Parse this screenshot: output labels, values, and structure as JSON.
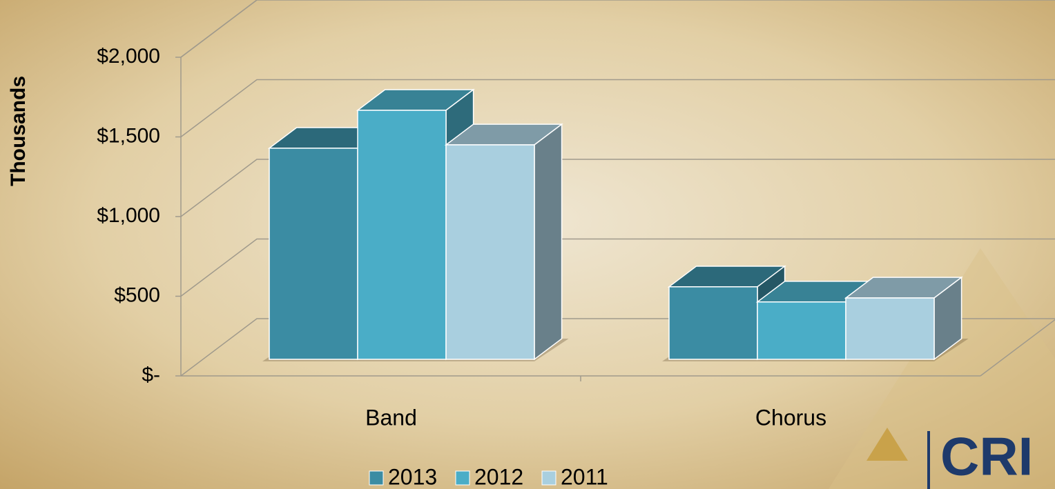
{
  "chart_data": {
    "type": "bar3d",
    "y_label": "Thousands",
    "categories": [
      "Band",
      "Chorus"
    ],
    "series": [
      {
        "name": "2013",
        "color": "#3b8ca3",
        "values": [
          1325,
          455
        ]
      },
      {
        "name": "2012",
        "color": "#4aadc7",
        "values": [
          1563,
          360
        ]
      },
      {
        "name": "2011",
        "color": "#a9cfdf",
        "values": [
          1346,
          385
        ]
      }
    ],
    "ylim": [
      0,
      2000
    ],
    "yticks": [
      {
        "value": 0,
        "label": "$-"
      },
      {
        "value": 500,
        "label": "$500"
      },
      {
        "value": 1000,
        "label": "$1,000"
      },
      {
        "value": 1500,
        "label": "$1,500"
      },
      {
        "value": 2000,
        "label": "$2,000"
      }
    ],
    "grid": true,
    "legend": "bottom"
  },
  "logo": "CRI"
}
